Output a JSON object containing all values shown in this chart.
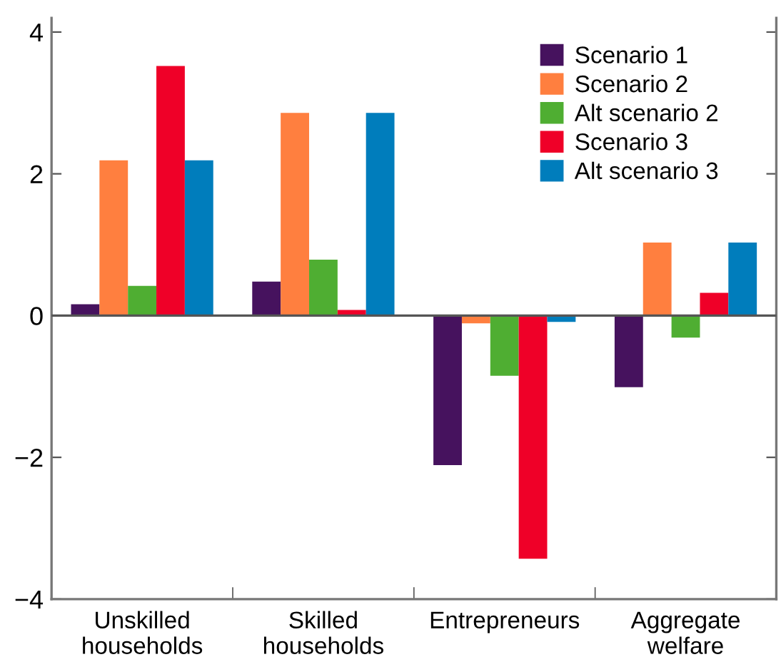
{
  "chart_data": {
    "type": "bar",
    "categories": [
      "Unskilled\nhouseholds",
      "Skilled\nhouseholds",
      "Entrepreneurs",
      "Aggregate\nwelfare"
    ],
    "series": [
      {
        "name": "Scenario 1",
        "color": "#46125e",
        "values": [
          0.16,
          0.48,
          -2.11,
          -1.01
        ]
      },
      {
        "name": "Scenario 2",
        "color": "#ff7f3f",
        "values": [
          2.19,
          2.86,
          -0.11,
          1.03
        ]
      },
      {
        "name": "Alt scenario 2",
        "color": "#4fae32",
        "values": [
          0.42,
          0.79,
          -0.85,
          -0.31
        ]
      },
      {
        "name": "Scenario 3",
        "color": "#ef0028",
        "values": [
          3.52,
          0.08,
          -3.43,
          0.32
        ]
      },
      {
        "name": "Alt scenario 3",
        "color": "#007dbc",
        "values": [
          2.19,
          2.86,
          -0.09,
          1.03
        ]
      }
    ],
    "ylim": [
      -4,
      4.2
    ],
    "yticks": [
      {
        "value": -4,
        "label": "−4"
      },
      {
        "value": -2,
        "label": "−2"
      },
      0,
      2,
      4
    ],
    "ref_lines": [
      {
        "axis": "y",
        "value": 0,
        "color": "#555555"
      }
    ],
    "legend": "top right",
    "grid": false
  }
}
